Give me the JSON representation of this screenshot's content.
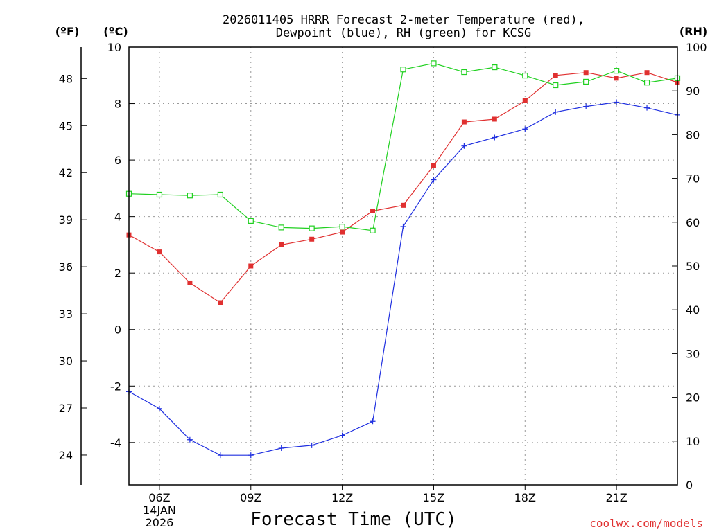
{
  "chart_data": {
    "type": "line",
    "title_lines": [
      "2026011405 HRRR Forecast 2-meter Temperature (red),",
      "Dewpoint (blue), RH (green) for KCSG"
    ],
    "xlabel": "Forecast Time (UTC)",
    "credit": "coolwx.com/models",
    "units": {
      "fahrenheit": "(ºF)",
      "celsius": "(ºC)",
      "rh": "(RH)"
    },
    "x_hours": [
      5,
      6,
      7,
      8,
      9,
      10,
      11,
      12,
      13,
      14,
      15,
      16,
      17,
      18,
      19,
      20,
      21,
      22,
      23
    ],
    "xlim": [
      5,
      23
    ],
    "x_ticks": [
      {
        "hour": 6,
        "label": "06Z",
        "sub1": "14JAN",
        "sub2": "2026"
      },
      {
        "hour": 9,
        "label": "09Z",
        "sub1": "",
        "sub2": ""
      },
      {
        "hour": 12,
        "label": "12Z",
        "sub1": "",
        "sub2": ""
      },
      {
        "hour": 15,
        "label": "15Z",
        "sub1": "",
        "sub2": ""
      },
      {
        "hour": 18,
        "label": "18Z",
        "sub1": "",
        "sub2": ""
      },
      {
        "hour": 21,
        "label": "21Z",
        "sub1": "",
        "sub2": ""
      }
    ],
    "ylim_celsius": [
      -5.5,
      10
    ],
    "y_ticks_celsius": [
      "10",
      "8",
      "6",
      "4",
      "2",
      "0",
      "-2",
      "-4"
    ],
    "y_ticks_fahrenheit": [
      "48",
      "45",
      "42",
      "39",
      "36",
      "33",
      "30",
      "27",
      "24"
    ],
    "ylim_rh": [
      0,
      100
    ],
    "y_ticks_rh": [
      "100",
      "90",
      "80",
      "70",
      "60",
      "50",
      "40",
      "30",
      "20",
      "10",
      "0"
    ],
    "series": [
      {
        "name": "Temperature",
        "axis": "celsius",
        "color": "#e03030",
        "marker": "filled-square",
        "values": [
          3.35,
          2.75,
          1.65,
          0.95,
          2.25,
          3.0,
          3.2,
          3.45,
          4.2,
          4.4,
          5.8,
          7.35,
          7.45,
          8.1,
          9.0,
          9.1,
          8.9,
          9.1,
          8.75
        ]
      },
      {
        "name": "Dewpoint",
        "axis": "celsius",
        "color": "#2030e0",
        "marker": "plus",
        "values": [
          -2.2,
          -2.8,
          -3.9,
          -4.45,
          -4.45,
          -4.2,
          -4.1,
          -3.75,
          -3.25,
          3.65,
          5.3,
          6.5,
          6.8,
          7.1,
          7.7,
          7.9,
          8.05,
          7.85,
          7.6
        ]
      },
      {
        "name": "RH",
        "axis": "rh",
        "color": "#20d020",
        "marker": "open-square",
        "values": [
          66.5,
          66.3,
          66.1,
          66.3,
          60.3,
          58.8,
          58.6,
          59.0,
          58.1,
          94.9,
          96.3,
          94.3,
          95.4,
          93.5,
          91.3,
          92.1,
          94.6,
          91.9,
          92.9
        ]
      }
    ]
  }
}
